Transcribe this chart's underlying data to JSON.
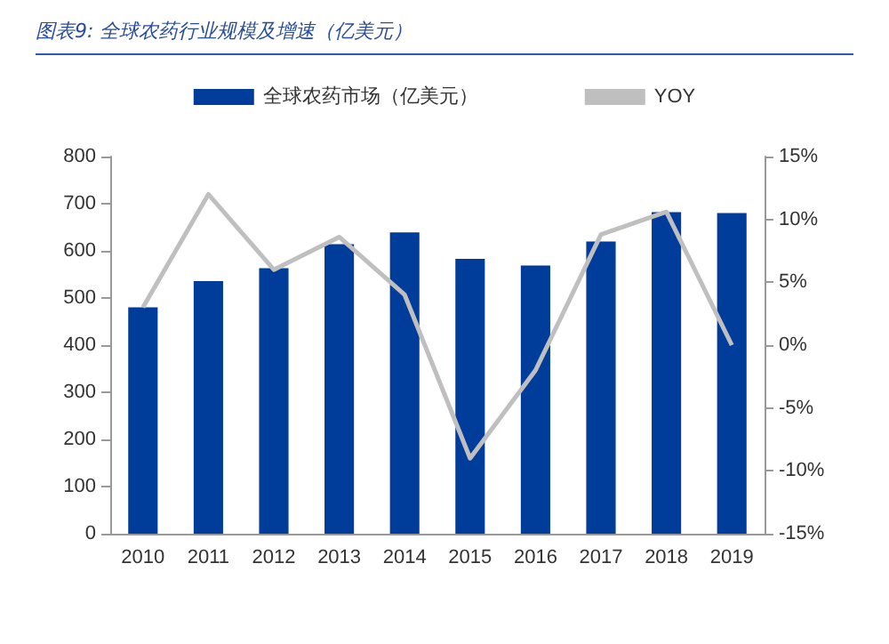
{
  "chart_data": {
    "type": "bar",
    "title": "图表9:  全球农药行业规模及增速（亿美元）",
    "categories": [
      "2010",
      "2011",
      "2012",
      "2013",
      "2014",
      "2015",
      "2016",
      "2017",
      "2018",
      "2019"
    ],
    "series": [
      {
        "name": "全球农药市场（亿美元）",
        "color": "#003c99",
        "values": [
          480,
          536,
          563,
          614,
          639,
          583,
          569,
          620,
          682,
          680
        ]
      },
      {
        "name": "YOY",
        "type": "line",
        "axis": "y2",
        "color": "#bfbfbf",
        "values": [
          3,
          12,
          6,
          8.6,
          4,
          -9,
          -2,
          8.8,
          10.6,
          0
        ]
      }
    ],
    "ylim": [
      0,
      800
    ],
    "yticks": [
      0,
      100,
      200,
      300,
      400,
      500,
      600,
      700,
      800
    ],
    "y2lim": [
      -15,
      15
    ],
    "y2ticks": [
      {
        "value": -15,
        "label": "-15%"
      },
      {
        "value": -10,
        "label": "-10%"
      },
      {
        "value": -5,
        "label": "-5%"
      },
      {
        "value": 0,
        "label": "0%"
      },
      {
        "value": 5,
        "label": "5%"
      },
      {
        "value": 10,
        "label": "10%"
      },
      {
        "value": 15,
        "label": "15%"
      }
    ],
    "legend": "top",
    "grid": false,
    "marker": "none"
  }
}
